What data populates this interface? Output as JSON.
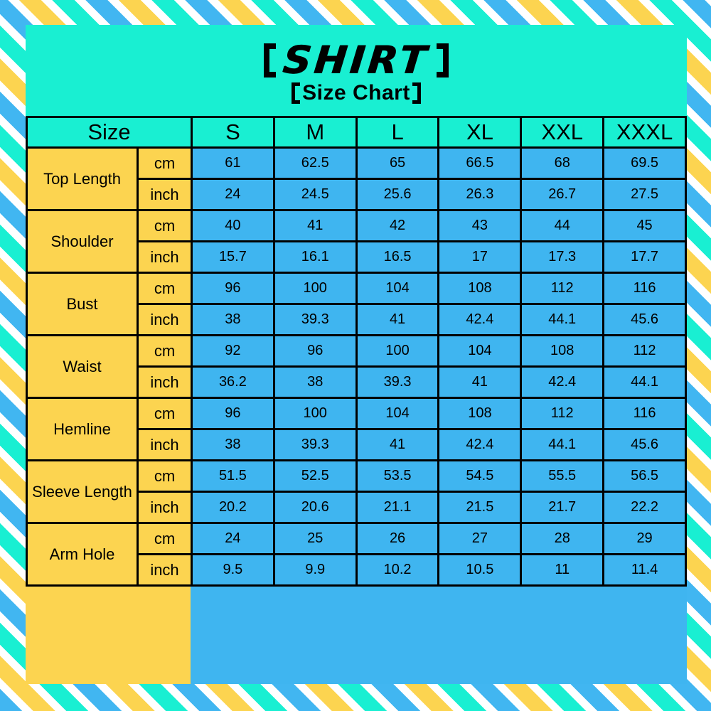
{
  "title": {
    "brand": "SHIRT",
    "subtitle": "Size Chart",
    "bracket_style": "CJK lenticular brackets"
  },
  "colors": {
    "background_teal": "#19EFD2",
    "cell_yellow": "#FCD450",
    "cell_blue": "#3FB5F0",
    "stripe_white": "#FFFFFF",
    "border_black": "#000000"
  },
  "chart_data": {
    "type": "table",
    "title": "SHIRT",
    "subtitle": "Size Chart",
    "corner_header": "Size",
    "columns": [
      "S",
      "M",
      "L",
      "XL",
      "XXL",
      "XXXL"
    ],
    "unit_labels": [
      "cm",
      "inch"
    ],
    "rows": [
      {
        "label": "Top Length",
        "unit_rows": [
          {
            "unit": "cm",
            "values": [
              "61",
              "62.5",
              "65",
              "66.5",
              "68",
              "69.5"
            ]
          },
          {
            "unit": "inch",
            "values": [
              "24",
              "24.5",
              "25.6",
              "26.3",
              "26.7",
              "27.5"
            ]
          }
        ]
      },
      {
        "label": "Shoulder",
        "unit_rows": [
          {
            "unit": "cm",
            "values": [
              "40",
              "41",
              "42",
              "43",
              "44",
              "45"
            ]
          },
          {
            "unit": "inch",
            "values": [
              "15.7",
              "16.1",
              "16.5",
              "17",
              "17.3",
              "17.7"
            ]
          }
        ]
      },
      {
        "label": "Bust",
        "unit_rows": [
          {
            "unit": "cm",
            "values": [
              "96",
              "100",
              "104",
              "108",
              "112",
              "116"
            ]
          },
          {
            "unit": "inch",
            "values": [
              "38",
              "39.3",
              "41",
              "42.4",
              "44.1",
              "45.6"
            ]
          }
        ]
      },
      {
        "label": "Waist",
        "unit_rows": [
          {
            "unit": "cm",
            "values": [
              "92",
              "96",
              "100",
              "104",
              "108",
              "112"
            ]
          },
          {
            "unit": "inch",
            "values": [
              "36.2",
              "38",
              "39.3",
              "41",
              "42.4",
              "44.1"
            ]
          }
        ]
      },
      {
        "label": "Hemline",
        "unit_rows": [
          {
            "unit": "cm",
            "values": [
              "96",
              "100",
              "104",
              "108",
              "112",
              "116"
            ]
          },
          {
            "unit": "inch",
            "values": [
              "38",
              "39.3",
              "41",
              "42.4",
              "44.1",
              "45.6"
            ]
          }
        ]
      },
      {
        "label": "Sleeve Length",
        "unit_rows": [
          {
            "unit": "cm",
            "values": [
              "51.5",
              "52.5",
              "53.5",
              "54.5",
              "55.5",
              "56.5"
            ]
          },
          {
            "unit": "inch",
            "values": [
              "20.2",
              "20.6",
              "21.1",
              "21.5",
              "21.7",
              "22.2"
            ]
          }
        ]
      },
      {
        "label": "Arm Hole",
        "unit_rows": [
          {
            "unit": "cm",
            "values": [
              "24",
              "25",
              "26",
              "27",
              "28",
              "29"
            ]
          },
          {
            "unit": "inch",
            "values": [
              "9.5",
              "9.9",
              "10.2",
              "10.5",
              "11",
              "11.4"
            ]
          }
        ]
      }
    ]
  }
}
